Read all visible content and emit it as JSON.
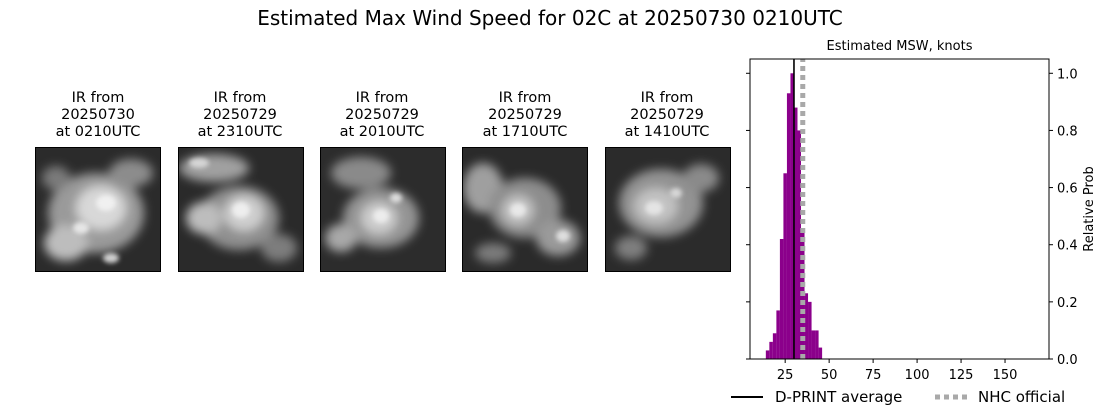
{
  "figure": {
    "title": "Estimated Max Wind Speed for 02C at 20250730 0210UTC"
  },
  "ir_images": [
    {
      "line1": "IR from",
      "line2": "20250730",
      "line3": "at 0210UTC"
    },
    {
      "line1": "IR from",
      "line2": "20250729",
      "line3": "at 2310UTC"
    },
    {
      "line1": "IR from",
      "line2": "20250729",
      "line3": "at 2010UTC"
    },
    {
      "line1": "IR from",
      "line2": "20250729",
      "line3": "at 1710UTC"
    },
    {
      "line1": "IR from",
      "line2": "20250729",
      "line3": "at 1410UTC"
    }
  ],
  "chart_data": {
    "type": "bar",
    "title": "Estimated MSW, knots",
    "xlabel": "",
    "ylabel": "Relative Prob",
    "xlim": [
      5,
      175
    ],
    "ylim": [
      0,
      1.05
    ],
    "xticks": [
      25,
      50,
      75,
      100,
      125,
      150
    ],
    "yticks": [
      0.0,
      0.2,
      0.4,
      0.6,
      0.8,
      1.0
    ],
    "ytick_labels": [
      "0.0",
      "0.2",
      "0.4",
      "0.6",
      "0.8",
      "1.0"
    ],
    "bin_width": 2,
    "bars": [
      {
        "x": 15,
        "value": 0.03
      },
      {
        "x": 17,
        "value": 0.06
      },
      {
        "x": 19,
        "value": 0.09
      },
      {
        "x": 21,
        "value": 0.17
      },
      {
        "x": 23,
        "value": 0.42
      },
      {
        "x": 25,
        "value": 0.65
      },
      {
        "x": 27,
        "value": 0.93
      },
      {
        "x": 29,
        "value": 1.0
      },
      {
        "x": 31,
        "value": 0.88
      },
      {
        "x": 33,
        "value": 0.8
      },
      {
        "x": 35,
        "value": 0.45
      },
      {
        "x": 37,
        "value": 0.23
      },
      {
        "x": 39,
        "value": 0.2
      },
      {
        "x": 41,
        "value": 0.1
      },
      {
        "x": 43,
        "value": 0.1
      },
      {
        "x": 45,
        "value": 0.04
      }
    ],
    "bar_color": "#8b008b",
    "dprint_average": 30,
    "nhc_official": 35,
    "legend": [
      {
        "label": "D-PRINT average",
        "color": "#000000",
        "style": "solid"
      },
      {
        "label": "NHC official",
        "color": "#a9a9a9",
        "style": "dotted"
      }
    ],
    "legend_position": "bottom",
    "grid": false
  }
}
